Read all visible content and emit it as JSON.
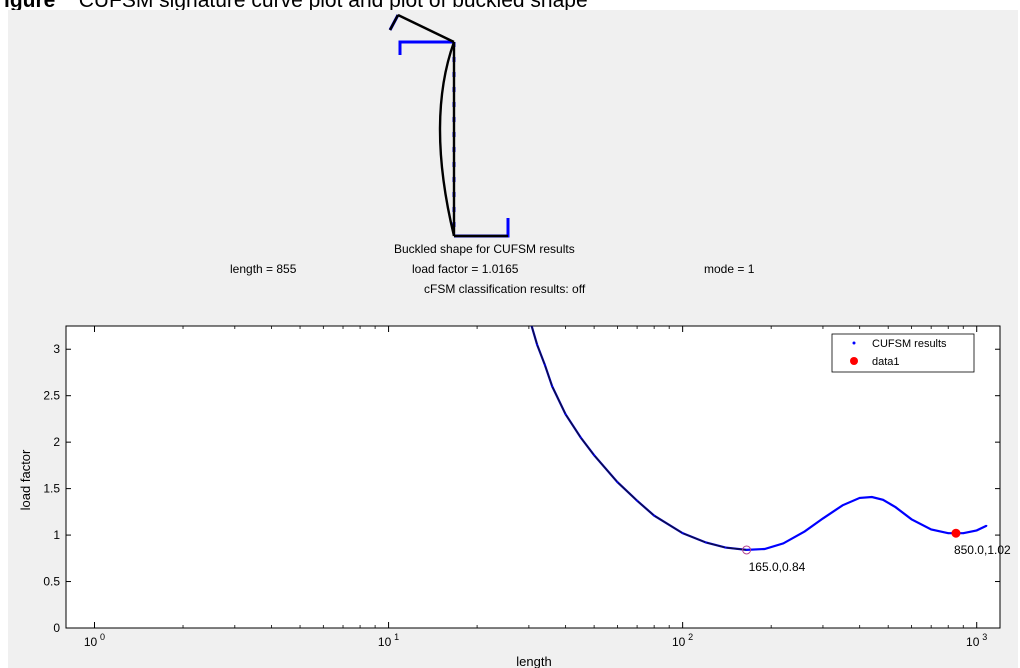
{
  "caption": {
    "bold": "igure",
    "text": "CUFSM signature curve plot and plot of buckled shape"
  },
  "shape_panel": {
    "title": "Buckled shape for CUFSM results",
    "length_text": "length = 855",
    "load_factor_text": "load factor = 1.0165",
    "mode_text": "mode = 1",
    "classification_text": "cFSM classification results: off"
  },
  "colors": {
    "curve": "#0000ff",
    "marker": "#ff0000",
    "deformed": "#000000",
    "min_marker": "#b04090"
  },
  "chart_data": {
    "type": "line",
    "xscale": "log",
    "xlabel": "length",
    "ylabel": "load factor",
    "xlim": [
      0.8,
      1200
    ],
    "ylim": [
      0,
      3.25
    ],
    "x_ticks": [
      1,
      10,
      100,
      1000
    ],
    "x_tick_labels": [
      "10",
      "10",
      "10",
      "10"
    ],
    "x_tick_exps": [
      "0",
      "1",
      "2",
      "3"
    ],
    "y_ticks": [
      0,
      0.5,
      1,
      1.5,
      2,
      2.5,
      3
    ],
    "y_tick_labels": [
      "0",
      "0.5",
      "1",
      "1.5",
      "2",
      "2.5",
      "3"
    ],
    "legend": {
      "position": "top-right",
      "entries": [
        "CUFSM results",
        "data1"
      ]
    },
    "series": [
      {
        "name": "CUFSM results",
        "x": [
          30,
          32,
          34,
          36,
          40,
          45,
          50,
          60,
          70,
          80,
          100,
          120,
          140,
          165,
          190,
          220,
          260,
          300,
          350,
          400,
          440,
          480,
          530,
          600,
          700,
          800,
          850,
          900,
          1000,
          1080
        ],
        "y": [
          3.35,
          3.05,
          2.83,
          2.6,
          2.3,
          2.05,
          1.86,
          1.57,
          1.37,
          1.21,
          1.02,
          0.92,
          0.865,
          0.84,
          0.85,
          0.91,
          1.04,
          1.18,
          1.32,
          1.4,
          1.41,
          1.38,
          1.3,
          1.17,
          1.06,
          1.02,
          1.02,
          1.02,
          1.05,
          1.1
        ]
      }
    ],
    "annotations": [
      {
        "label": "165.0,0.84",
        "x": 165,
        "y": 0.84,
        "marker": "open-circle"
      },
      {
        "label": "850.0,1.02",
        "x": 850,
        "y": 1.02,
        "marker": "filled-dot",
        "series": "data1"
      }
    ]
  }
}
